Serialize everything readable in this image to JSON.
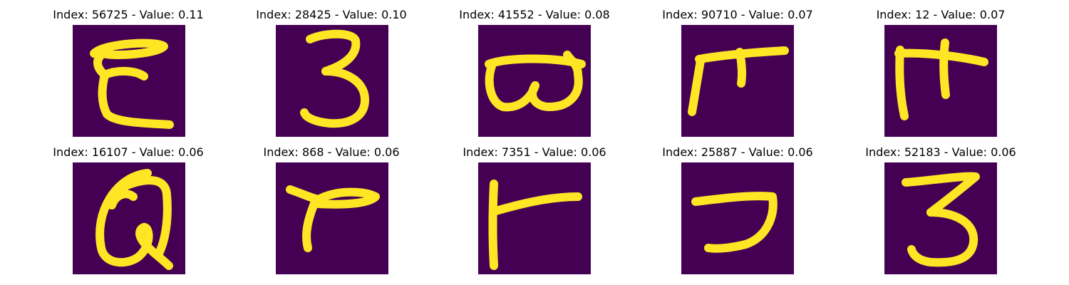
{
  "colors": {
    "background": "#440154",
    "foreground": "#fde725"
  },
  "chart_data": {
    "type": "image-grid",
    "colormap": "viridis",
    "panels": [
      {
        "title": "Index: 56725 - Value: 0.11",
        "index": 56725,
        "value": 0.11,
        "glyph": "E"
      },
      {
        "title": "Index: 28425 - Value: 0.10",
        "index": 28425,
        "value": 0.1,
        "glyph": "3"
      },
      {
        "title": "Index: 41552 - Value: 0.08",
        "index": 41552,
        "value": 0.08,
        "glyph": "ϖ"
      },
      {
        "title": "Index: 90710 - Value: 0.07",
        "index": 90710,
        "value": 0.07,
        "glyph": "ᒥ"
      },
      {
        "title": "Index: 12 - Value: 0.07",
        "index": 12,
        "value": 0.07,
        "glyph": "π"
      },
      {
        "title": "Index: 16107 - Value: 0.06",
        "index": 16107,
        "value": 0.06,
        "glyph": "Q"
      },
      {
        "title": "Index: 868 - Value: 0.06",
        "index": 868,
        "value": 0.06,
        "glyph": "r"
      },
      {
        "title": "Index: 7351 - Value: 0.06",
        "index": 7351,
        "value": 0.06,
        "glyph": "F"
      },
      {
        "title": "Index: 25887 - Value: 0.06",
        "index": 25887,
        "value": 0.06,
        "glyph": "ℸ"
      },
      {
        "title": "Index: 52183 - Value: 0.06",
        "index": 52183,
        "value": 0.06,
        "glyph": "3"
      }
    ]
  }
}
